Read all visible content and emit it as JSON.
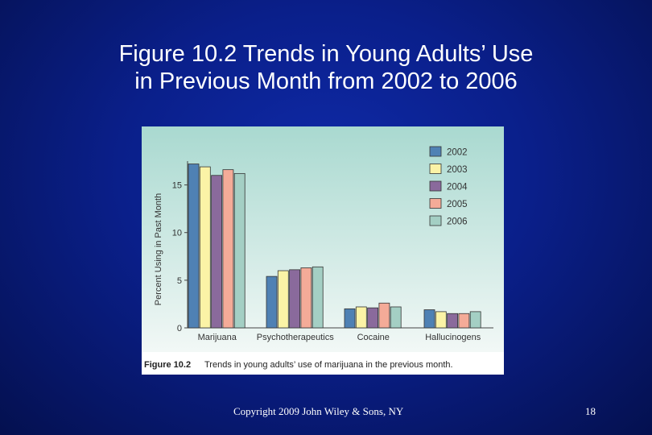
{
  "slide": {
    "title_line1": "Figure 10.2 Trends in Young Adults’ Use",
    "title_line2": "in Previous Month from 2002 to 2006",
    "copyright": "Copyright 2009 John Wiley & Sons, NY",
    "page_number": "18"
  },
  "figure": {
    "caption_label": "Figure 10.2",
    "caption_text": "Trends in young adults’ use of marijuana in the previous month."
  },
  "chart_data": {
    "type": "bar",
    "ylabel": "Percent Using in Past Month",
    "xlabel": "",
    "ylim": [
      0,
      17.5
    ],
    "yticks": [
      0,
      5,
      10,
      15
    ],
    "grid": false,
    "legend_position": "top-right",
    "categories": [
      "Marijuana",
      "Psychotherapeutics",
      "Cocaine",
      "Hallucinogens"
    ],
    "series": [
      {
        "name": "2002",
        "color": "#4f81b4",
        "values": [
          17.2,
          5.4,
          2.0,
          1.9
        ]
      },
      {
        "name": "2003",
        "color": "#fbf3a6",
        "values": [
          16.9,
          6.0,
          2.2,
          1.7
        ]
      },
      {
        "name": "2004",
        "color": "#8a6a9c",
        "values": [
          16.0,
          6.1,
          2.1,
          1.5
        ]
      },
      {
        "name": "2005",
        "color": "#f4ab98",
        "values": [
          16.6,
          6.3,
          2.6,
          1.5
        ]
      },
      {
        "name": "2006",
        "color": "#a4cfc4",
        "values": [
          16.2,
          6.4,
          2.2,
          1.7
        ]
      }
    ]
  }
}
